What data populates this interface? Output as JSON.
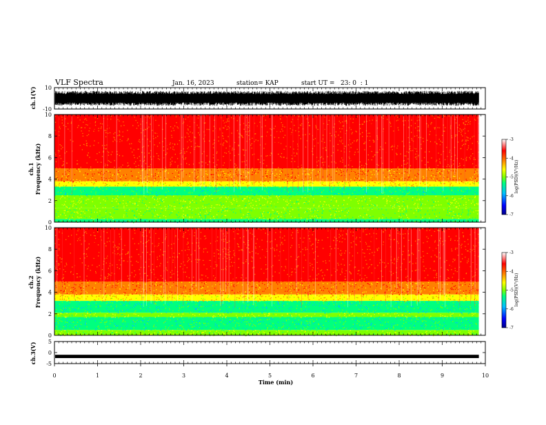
{
  "header": {
    "title": "VLF Spectra",
    "date": "Jan. 16, 2023",
    "station": "station= KAP",
    "start_ut": "start UT =   23: 0  : 1"
  },
  "colors": {
    "colormap": [
      "#00008b",
      "#0000ff",
      "#00bfff",
      "#00ff7f",
      "#7fff00",
      "#ffff00",
      "#ff8000",
      "#ff0000",
      "#ffffff"
    ]
  },
  "chart_data": [
    {
      "type": "line",
      "panel": "ch1-waveform",
      "ylabel": "ch.1(V)",
      "ylim": [
        -10,
        10
      ],
      "yticks": [
        "10",
        "-10"
      ],
      "xlim": [
        0,
        10
      ],
      "fill_range_approx": [
        -7,
        7
      ]
    },
    {
      "type": "heatmap",
      "panel": "ch1-spectrogram",
      "ylabel": "ch.1\nFrequency (kHz)",
      "ylabel_lines": [
        "ch.1",
        "Frequency (kHz)"
      ],
      "ylim": [
        0,
        10
      ],
      "yticks": [
        "0",
        "2",
        "4",
        "6",
        "8",
        "10"
      ],
      "xlim": [
        0,
        9.85
      ],
      "bands": [
        {
          "from": 0.0,
          "to": 0.3,
          "level": 0.45
        },
        {
          "from": 0.3,
          "to": 1.3,
          "level": 0.55
        },
        {
          "from": 1.3,
          "to": 2.5,
          "level": 0.6
        },
        {
          "from": 2.5,
          "to": 3.3,
          "level": 0.45
        },
        {
          "from": 3.3,
          "to": 3.8,
          "level": 0.7
        },
        {
          "from": 3.8,
          "to": 5.0,
          "level": 0.82
        },
        {
          "from": 5.0,
          "to": 10.0,
          "level": 0.95
        }
      ]
    },
    {
      "type": "heatmap",
      "panel": "ch2-spectrogram",
      "ylabel": "ch.2\nFrequency (kHz)",
      "ylabel_lines": [
        "ch.2",
        "Frequency (kHz)"
      ],
      "ylim": [
        0,
        10
      ],
      "yticks": [
        "0",
        "2",
        "4",
        "6",
        "8",
        "10"
      ],
      "xlim": [
        0,
        9.85
      ],
      "bands": [
        {
          "from": 0.0,
          "to": 0.5,
          "level": 0.6
        },
        {
          "from": 0.5,
          "to": 1.7,
          "level": 0.45
        },
        {
          "from": 1.7,
          "to": 2.1,
          "level": 0.6
        },
        {
          "from": 2.1,
          "to": 3.2,
          "level": 0.42
        },
        {
          "from": 3.2,
          "to": 3.8,
          "level": 0.72
        },
        {
          "from": 3.8,
          "to": 5.0,
          "level": 0.84
        },
        {
          "from": 5.0,
          "to": 10.0,
          "level": 0.95
        }
      ]
    },
    {
      "type": "line",
      "panel": "ch3-waveform",
      "ylabel": "ch.3(V)",
      "ylim": [
        -5,
        5
      ],
      "yticks": [
        "5",
        "0",
        "-5"
      ],
      "xlim": [
        0,
        10
      ],
      "band": [
        -1.0,
        -2.5
      ]
    }
  ],
  "colorbars": [
    {
      "label": "log(PSD)(V²/Hz)",
      "range": [
        -7,
        -3
      ],
      "ticks": [
        "-3",
        "-4",
        "-5",
        "-6",
        "-7"
      ]
    },
    {
      "label": "log(PSD)(V²/Hz)",
      "range": [
        -7,
        -3
      ],
      "ticks": [
        "-3",
        "-4",
        "-5",
        "-6",
        "-7"
      ]
    }
  ],
  "x_axis": {
    "label": "Time (min)",
    "ticks": [
      "0",
      "1",
      "2",
      "3",
      "4",
      "5",
      "6",
      "7",
      "8",
      "9",
      "10"
    ],
    "range": [
      0,
      10
    ]
  }
}
